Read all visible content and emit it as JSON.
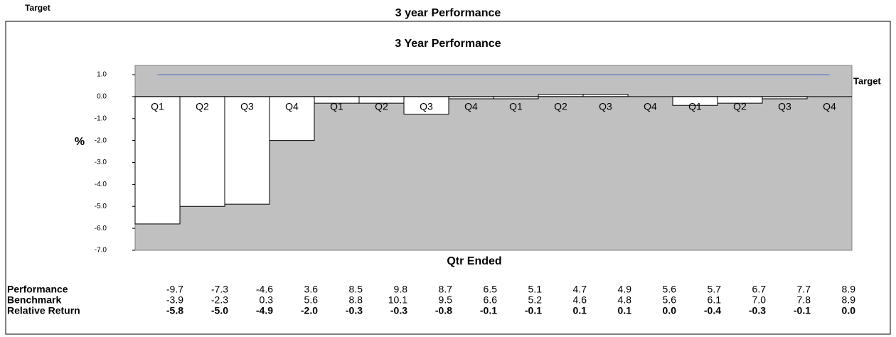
{
  "header_left": "Target",
  "header_title": "3 year Performance",
  "chart_data": {
    "type": "bar",
    "title": "3 Year Performance",
    "y_label": "%",
    "x_label": "Qtr Ended",
    "categories": [
      "Q1",
      "Q2",
      "Q3",
      "Q4",
      "Q1",
      "Q2",
      "Q3",
      "Q4",
      "Q1",
      "Q2",
      "Q3",
      "Q4",
      "Q1",
      "Q2",
      "Q3",
      "Q4"
    ],
    "color": "#ffffff",
    "plot_background": "#c0c0c0",
    "target": 1,
    "target_label": "Target",
    "target_color": "#4472c4",
    "ylim": [
      -7,
      1
    ],
    "yticks": [
      {
        "value": 1,
        "label": "1.0"
      },
      {
        "value": 0,
        "label": "0.0"
      },
      {
        "value": -1,
        "label": "-1.0"
      },
      {
        "value": -2,
        "label": "-2.0"
      },
      {
        "value": -3,
        "label": "-3.0"
      },
      {
        "value": -4,
        "label": "-4.0"
      },
      {
        "value": -5,
        "label": "-5.0"
      },
      {
        "value": -6,
        "label": "-6.0"
      },
      {
        "value": -7,
        "label": "-7.0"
      }
    ],
    "bar_row": 2,
    "table": {
      "rows": [
        {
          "name": "Performance",
          "values": [
            -9.7,
            -7.3,
            -4.6,
            3.6,
            8.5,
            9.8,
            8.7,
            6.5,
            5.1,
            4.7,
            4.9,
            5.6,
            5.7,
            6.7,
            7.7,
            8.9
          ]
        },
        {
          "name": "Benchmark",
          "values": [
            -3.9,
            -2.3,
            0.3,
            5.6,
            8.8,
            10.1,
            9.5,
            6.6,
            5.2,
            4.6,
            4.8,
            5.6,
            6.1,
            7.0,
            7.8,
            8.9
          ],
          "value_labels": [
            "-3.9",
            "-2.3",
            "0.3",
            "5.6",
            "8.8",
            "10.1",
            "9.5",
            "6.6",
            "5.2",
            "4.6",
            "4.8",
            "5.6",
            "6.1",
            "7.0",
            "7.8",
            "8.9"
          ]
        },
        {
          "name": "Relative Return",
          "bold": true,
          "values": [
            -5.8,
            -5.0,
            -4.9,
            -2.0,
            -0.3,
            -0.3,
            -0.8,
            -0.1,
            -0.1,
            0.1,
            0.1,
            0.0,
            -0.4,
            -0.3,
            -0.1,
            0.0
          ],
          "value_labels": [
            "-5.8",
            "-5.0",
            "-4.9",
            "-2.0",
            "-0.3",
            "-0.3",
            "-0.8",
            "-0.1",
            "-0.1",
            "0.1",
            "0.1",
            "0.0",
            "-0.4",
            "-0.3",
            "-0.1",
            "0.0"
          ]
        }
      ]
    }
  }
}
